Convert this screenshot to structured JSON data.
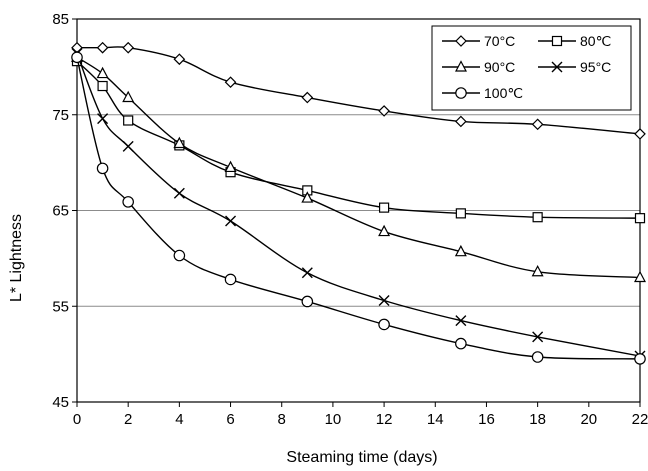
{
  "chart_data": {
    "type": "line",
    "title": "",
    "xlabel": "Steaming time (days)",
    "ylabel": "L* Lightness",
    "xlim": [
      0,
      22
    ],
    "ylim": [
      45,
      85
    ],
    "xticks": [
      0,
      2,
      4,
      6,
      8,
      10,
      12,
      14,
      16,
      18,
      20,
      22
    ],
    "yticks": [
      45,
      55,
      65,
      75,
      85
    ],
    "grid": "horizontal",
    "legend_position": "top-right",
    "series": [
      {
        "name": "70°C",
        "marker": "diamond",
        "x": [
          0,
          1,
          2,
          4,
          6,
          9,
          12,
          15,
          18,
          22
        ],
        "y": [
          82.0,
          82.0,
          82.0,
          80.8,
          78.4,
          76.8,
          75.4,
          74.3,
          74.0,
          73.0
        ]
      },
      {
        "name": "80℃",
        "marker": "square",
        "x": [
          0,
          1,
          2,
          4,
          6,
          9,
          12,
          15,
          18,
          22
        ],
        "y": [
          80.6,
          78.0,
          74.4,
          71.8,
          69.0,
          67.1,
          65.3,
          64.7,
          64.3,
          64.2
        ]
      },
      {
        "name": "90°C",
        "marker": "triangle",
        "x": [
          0,
          1,
          2,
          4,
          6,
          9,
          12,
          15,
          18,
          22
        ],
        "y": [
          81.0,
          79.3,
          76.8,
          72.0,
          69.5,
          66.3,
          62.8,
          60.7,
          58.6,
          58.0
        ]
      },
      {
        "name": "95°C",
        "marker": "x",
        "x": [
          0,
          1,
          2,
          4,
          6,
          9,
          12,
          15,
          18,
          22
        ],
        "y": [
          81.4,
          74.6,
          71.7,
          66.8,
          63.9,
          58.5,
          55.6,
          53.5,
          51.8,
          49.8
        ]
      },
      {
        "name": "100℃",
        "marker": "circle",
        "x": [
          0,
          1,
          2,
          4,
          6,
          9,
          12,
          15,
          18,
          22
        ],
        "y": [
          81.0,
          69.4,
          65.9,
          60.3,
          57.8,
          55.5,
          53.1,
          51.1,
          49.7,
          49.5
        ]
      }
    ]
  }
}
